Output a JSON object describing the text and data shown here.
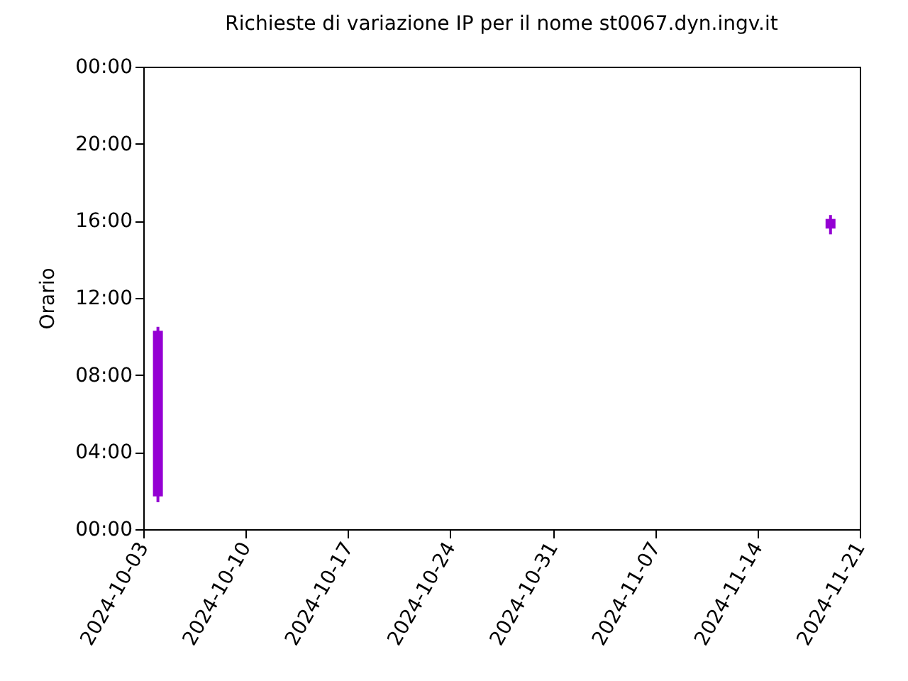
{
  "chart_data": {
    "type": "candlestick",
    "title": "Richieste di variazione IP per il nome st0067.dyn.ingv.it",
    "ylabel": "Orario",
    "x": [
      "2024-10-04",
      "2024-11-19"
    ],
    "ohlc": [
      [
        1.7,
        10.5,
        1.4,
        10.3
      ],
      [
        15.6,
        16.3,
        15.3,
        16.1
      ]
    ],
    "color": "#9400d3",
    "xlim": [
      "2024-10-03",
      "2024-11-21"
    ],
    "xticks": [
      "2024-10-03",
      "2024-10-10",
      "2024-10-17",
      "2024-10-24",
      "2024-10-31",
      "2024-11-07",
      "2024-11-14",
      "2024-11-21"
    ],
    "ylim": [
      0,
      24
    ],
    "yticks": [
      {
        "value": 0,
        "label": "00:00"
      },
      {
        "value": 4,
        "label": "04:00"
      },
      {
        "value": 8,
        "label": "08:00"
      },
      {
        "value": 12,
        "label": "12:00"
      },
      {
        "value": 16,
        "label": "16:00"
      },
      {
        "value": 20,
        "label": "20:00"
      },
      {
        "value": 24,
        "label": "00:00"
      }
    ],
    "grid": false
  }
}
